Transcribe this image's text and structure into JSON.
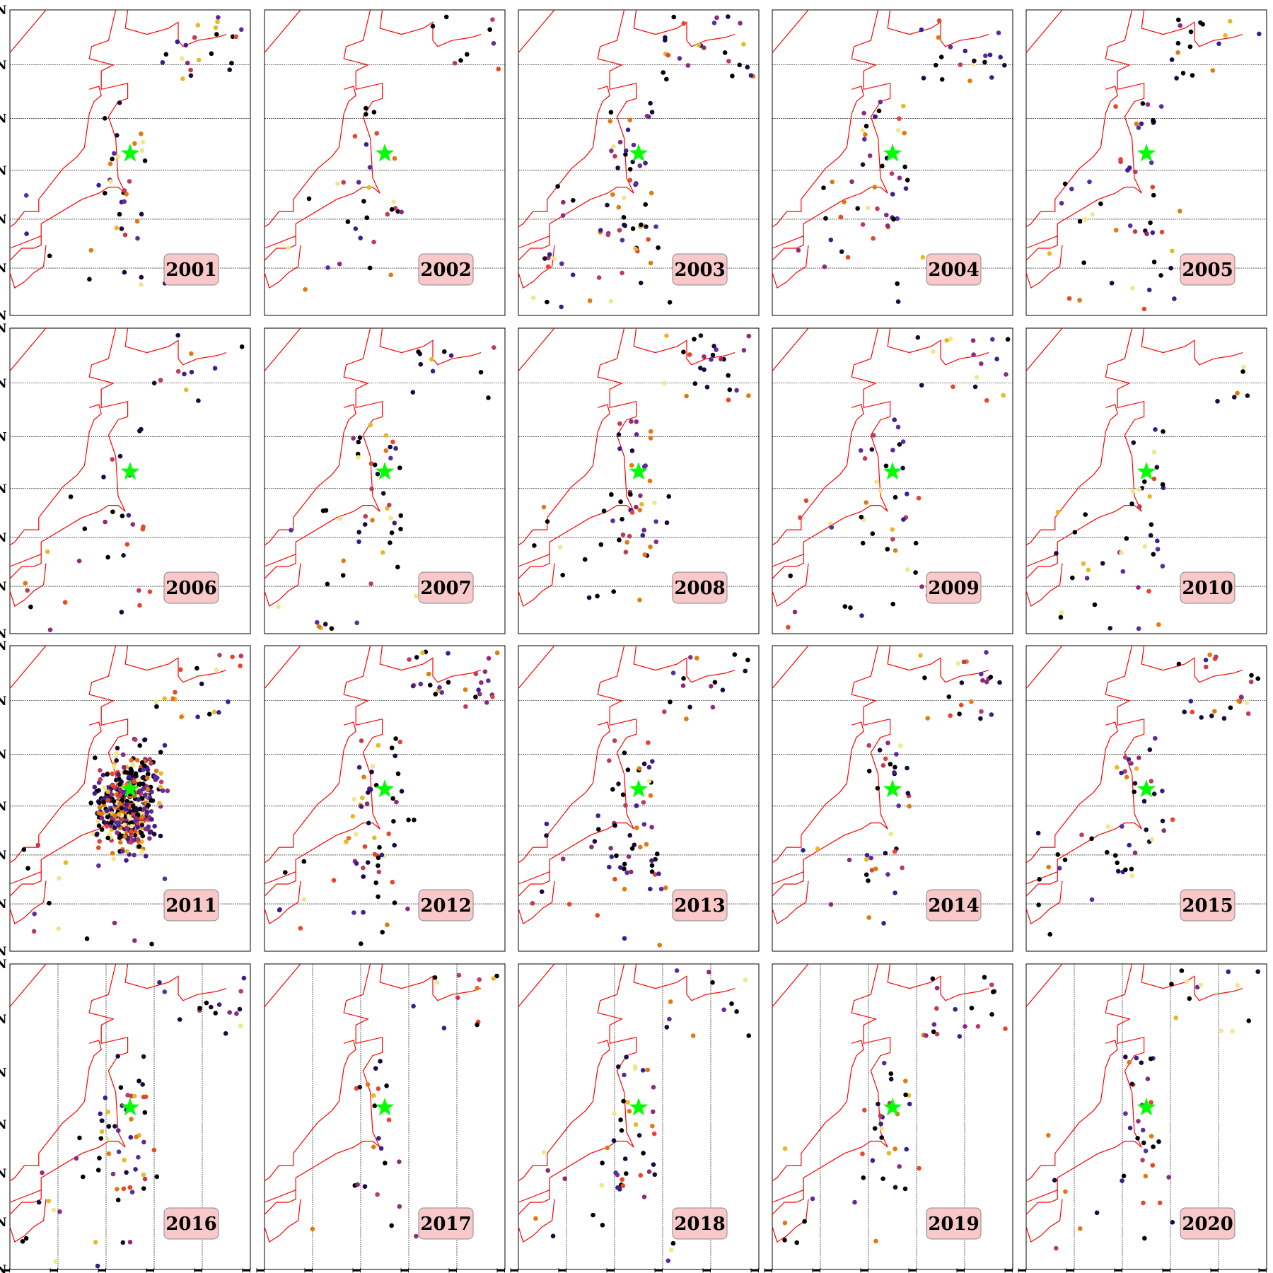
{
  "figure": {
    "epicenter_marker": {
      "shape": "star",
      "color": "#00ff00"
    },
    "coastline_color": "#ff0000",
    "label_box_fill": "#f9c9c9",
    "palette": [
      "#000000",
      "#1a0b3c",
      "#3b1f8c",
      "#5a2ca0",
      "#8e2a7a",
      "#c03a5a",
      "#e8452b",
      "#e07a10",
      "#e8b82a",
      "#f0e68c"
    ],
    "lat_tick_label": "N",
    "lon_tick_label": "I",
    "latitude_grid_rows": [
      1,
      2,
      3
    ],
    "longitude_grid_rows": [
      4
    ]
  },
  "panels": [
    {
      "year": "2001",
      "events": 60
    },
    {
      "year": "2002",
      "events": 40
    },
    {
      "year": "2003",
      "events": 95
    },
    {
      "year": "2004",
      "events": 70
    },
    {
      "year": "2005",
      "events": 65
    },
    {
      "year": "2006",
      "events": 40
    },
    {
      "year": "2007",
      "events": 60
    },
    {
      "year": "2008",
      "events": 80
    },
    {
      "year": "2009",
      "events": 60
    },
    {
      "year": "2010",
      "events": 50
    },
    {
      "year": "2011",
      "events": 520
    },
    {
      "year": "2012",
      "events": 95
    },
    {
      "year": "2013",
      "events": 80
    },
    {
      "year": "2014",
      "events": 60
    },
    {
      "year": "2015",
      "events": 70
    },
    {
      "year": "2016",
      "events": 80
    },
    {
      "year": "2017",
      "events": 35
    },
    {
      "year": "2018",
      "events": 60
    },
    {
      "year": "2019",
      "events": 55
    },
    {
      "year": "2020",
      "events": 50
    }
  ]
}
